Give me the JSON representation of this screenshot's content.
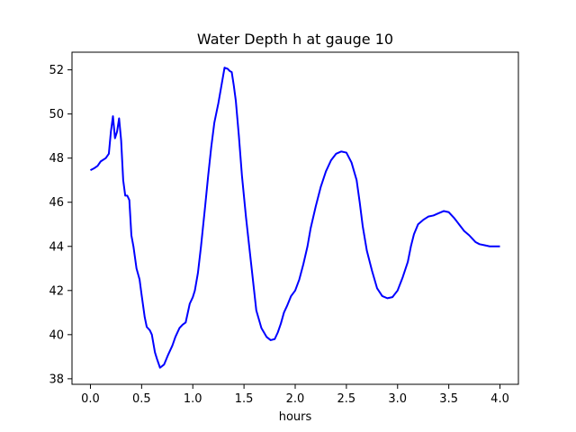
{
  "chart_data": {
    "type": "line",
    "title": "Water Depth h at gauge 10",
    "xlabel": "hours",
    "ylabel": "",
    "xlim": [
      -0.18,
      4.18
    ],
    "ylim": [
      37.75,
      52.8
    ],
    "xticks": [
      0.0,
      0.5,
      1.0,
      1.5,
      2.0,
      2.5,
      3.0,
      3.5,
      4.0
    ],
    "xtick_labels": [
      "0.0",
      "0.5",
      "1.0",
      "1.5",
      "2.0",
      "2.5",
      "3.0",
      "3.5",
      "4.0"
    ],
    "yticks": [
      38,
      40,
      42,
      44,
      46,
      48,
      50,
      52
    ],
    "ytick_labels": [
      "38",
      "40",
      "42",
      "44",
      "46",
      "48",
      "50",
      "52"
    ],
    "grid": false,
    "series": [
      {
        "color": "#0000ff",
        "x": [
          0.0,
          0.04,
          0.07,
          0.1,
          0.15,
          0.18,
          0.2,
          0.22,
          0.24,
          0.26,
          0.28,
          0.3,
          0.32,
          0.34,
          0.36,
          0.38,
          0.4,
          0.42,
          0.45,
          0.48,
          0.5,
          0.53,
          0.55,
          0.58,
          0.6,
          0.63,
          0.65,
          0.68,
          0.72,
          0.76,
          0.8,
          0.83,
          0.87,
          0.9,
          0.93,
          0.97,
          1.0,
          1.02,
          1.05,
          1.08,
          1.12,
          1.15,
          1.18,
          1.21,
          1.25,
          1.28,
          1.31,
          1.34,
          1.36,
          1.38,
          1.4,
          1.42,
          1.45,
          1.48,
          1.52,
          1.57,
          1.62,
          1.67,
          1.72,
          1.76,
          1.8,
          1.83,
          1.86,
          1.89,
          1.92,
          1.96,
          2.0,
          2.04,
          2.08,
          2.12,
          2.15,
          2.2,
          2.25,
          2.3,
          2.35,
          2.4,
          2.45,
          2.5,
          2.55,
          2.6,
          2.63,
          2.66,
          2.7,
          2.75,
          2.8,
          2.85,
          2.9,
          2.95,
          3.0,
          3.05,
          3.1,
          3.13,
          3.16,
          3.2,
          3.25,
          3.3,
          3.35,
          3.4,
          3.45,
          3.5,
          3.55,
          3.6,
          3.65,
          3.7,
          3.73,
          3.76,
          3.8,
          3.85,
          3.9,
          3.95,
          4.0
        ],
        "y": [
          47.45,
          47.55,
          47.65,
          47.85,
          48.0,
          48.2,
          49.2,
          49.9,
          48.9,
          49.2,
          49.8,
          48.8,
          47.0,
          46.3,
          46.3,
          46.1,
          44.5,
          44.0,
          43.0,
          42.5,
          41.8,
          40.8,
          40.35,
          40.2,
          40.0,
          39.2,
          38.9,
          38.5,
          38.65,
          39.1,
          39.5,
          39.9,
          40.3,
          40.45,
          40.55,
          41.4,
          41.7,
          42.0,
          42.8,
          44.0,
          45.8,
          47.2,
          48.5,
          49.6,
          50.5,
          51.3,
          52.1,
          52.05,
          51.95,
          51.9,
          51.3,
          50.6,
          49.0,
          47.2,
          45.3,
          43.2,
          41.1,
          40.3,
          39.9,
          39.75,
          39.8,
          40.1,
          40.5,
          41.0,
          41.3,
          41.75,
          42.0,
          42.5,
          43.2,
          44.0,
          44.8,
          45.8,
          46.7,
          47.4,
          47.9,
          48.2,
          48.3,
          48.25,
          47.8,
          47.0,
          46.0,
          44.9,
          43.8,
          42.9,
          42.1,
          41.75,
          41.65,
          41.7,
          42.0,
          42.6,
          43.3,
          44.0,
          44.55,
          45.0,
          45.2,
          45.35,
          45.4,
          45.5,
          45.6,
          45.55,
          45.3,
          45.0,
          44.7,
          44.5,
          44.35,
          44.2,
          44.1,
          44.05,
          44.0,
          44.0,
          44.0
        ]
      }
    ]
  }
}
